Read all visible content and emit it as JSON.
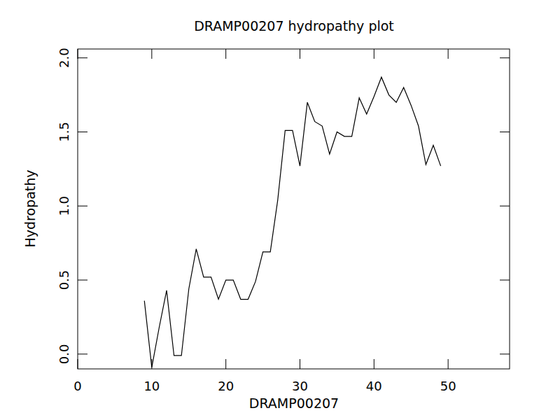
{
  "chart_data": {
    "type": "line",
    "title": "DRAMP00207 hydropathy plot",
    "x_label": "DRAMP00207",
    "y_label": "Hydropathy",
    "x": [
      9,
      10,
      11,
      12,
      13,
      14,
      15,
      16,
      17,
      18,
      19,
      20,
      21,
      22,
      23,
      24,
      25,
      26,
      27,
      28,
      29,
      30,
      31,
      32,
      33,
      34,
      35,
      36,
      37,
      38,
      39,
      40,
      41,
      42,
      43,
      44,
      45,
      46,
      47,
      48,
      49
    ],
    "values": [
      0.36,
      -0.09,
      0.18,
      0.43,
      -0.01,
      -0.01,
      0.44,
      0.71,
      0.52,
      0.52,
      0.37,
      0.5,
      0.5,
      0.37,
      0.37,
      0.49,
      0.69,
      0.69,
      1.04,
      1.51,
      1.51,
      1.27,
      1.7,
      1.57,
      1.54,
      1.35,
      1.5,
      1.47,
      1.47,
      1.73,
      1.62,
      1.74,
      1.87,
      1.75,
      1.7,
      1.8,
      1.68,
      1.54,
      1.28,
      1.41,
      1.27
    ],
    "color": "#000000",
    "xlim": [
      0,
      58.3
    ],
    "ylim": [
      -0.1,
      2.06
    ],
    "xticks": [
      0,
      10,
      20,
      30,
      40,
      50
    ],
    "yticks": [
      {
        "value": 0,
        "label": "0.0"
      },
      {
        "value": 0.5,
        "label": "0.5"
      },
      {
        "value": 1,
        "label": "1.0"
      },
      {
        "value": 1.5,
        "label": "1.5"
      },
      {
        "value": 2,
        "label": "2.0"
      }
    ],
    "grid": false
  }
}
